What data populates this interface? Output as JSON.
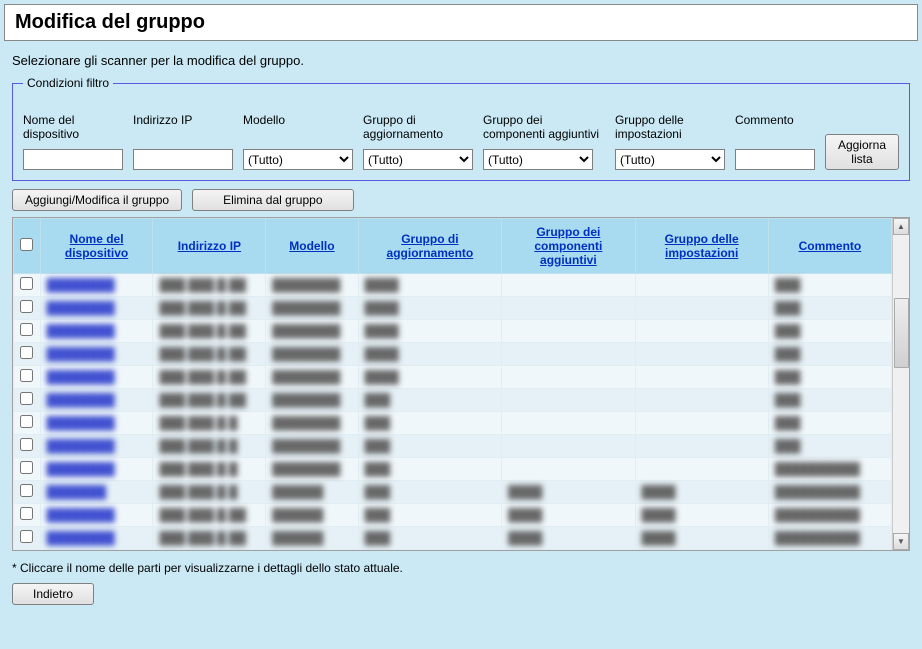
{
  "colors": {
    "page_bg": "#cae9f5",
    "header_bg": "#a9dbf0",
    "row_bg": "#f0f7fb",
    "row_alt_bg": "#e6f1f7",
    "link_color": "#0030c0",
    "fieldset_border": "#5a5ae0"
  },
  "title": "Modifica del gruppo",
  "subtitle": "Selezionare gli scanner per la modifica del gruppo.",
  "filter": {
    "legend": "Condizioni filtro",
    "device_name_label": "Nome del dispositivo",
    "ip_label": "Indirizzo IP",
    "model_label": "Modello",
    "update_group_label": "Gruppo di aggiornamento",
    "addon_group_label": "Gruppo dei componenti aggiuntivi",
    "settings_group_label": "Gruppo delle impostazioni",
    "comment_label": "Commento",
    "all_option": "(Tutto)",
    "refresh_button": "Aggiorna lista"
  },
  "buttons": {
    "add_modify": "Aggiungi/Modifica il gruppo",
    "delete": "Elimina dal gruppo",
    "back": "Indietro"
  },
  "table": {
    "columns": {
      "device_name": "Nome del dispositivo",
      "ip": "Indirizzo IP",
      "model": "Modello",
      "update_group": "Gruppo di aggiornamento",
      "addon_group": "Gruppo dei componenti aggiuntivi",
      "settings_group": "Gruppo delle impostazioni",
      "comment": "Commento"
    },
    "rows": [
      {
        "name": "████████",
        "ip": "███.███.█.██",
        "model": "████████",
        "upd": "████",
        "comp": "",
        "sett": "",
        "comm": "███"
      },
      {
        "name": "████████",
        "ip": "███.███.█.██",
        "model": "████████",
        "upd": "████",
        "comp": "",
        "sett": "",
        "comm": "███"
      },
      {
        "name": "████████",
        "ip": "███.███.█.██",
        "model": "████████",
        "upd": "████",
        "comp": "",
        "sett": "",
        "comm": "███"
      },
      {
        "name": "████████",
        "ip": "███.███.█.██",
        "model": "████████",
        "upd": "████",
        "comp": "",
        "sett": "",
        "comm": "███"
      },
      {
        "name": "████████",
        "ip": "███.███.█.██",
        "model": "████████",
        "upd": "████",
        "comp": "",
        "sett": "",
        "comm": "███"
      },
      {
        "name": "████████",
        "ip": "███.███.█.██",
        "model": "████████",
        "upd": "███",
        "comp": "",
        "sett": "",
        "comm": "███"
      },
      {
        "name": "████████",
        "ip": "███.███.█.█",
        "model": "████████",
        "upd": "███",
        "comp": "",
        "sett": "",
        "comm": "███"
      },
      {
        "name": "████████",
        "ip": "███.███.█.█",
        "model": "████████",
        "upd": "███",
        "comp": "",
        "sett": "",
        "comm": "███"
      },
      {
        "name": "████████",
        "ip": "███.███.█.█",
        "model": "████████",
        "upd": "███",
        "comp": "",
        "sett": "",
        "comm": "██████████"
      },
      {
        "name": "███████",
        "ip": "███.███.█.█",
        "model": "██████",
        "upd": "███",
        "comp": "████",
        "sett": "████",
        "comm": "██████████"
      },
      {
        "name": "████████",
        "ip": "███.███.█.██",
        "model": "██████",
        "upd": "███",
        "comp": "████",
        "sett": "████",
        "comm": "██████████"
      },
      {
        "name": "████████",
        "ip": "███.███.█.██",
        "model": "██████",
        "upd": "███",
        "comp": "████",
        "sett": "████",
        "comm": "██████████"
      }
    ]
  },
  "footnote": "* Cliccare il nome delle parti per visualizzarne i dettagli dello stato attuale."
}
